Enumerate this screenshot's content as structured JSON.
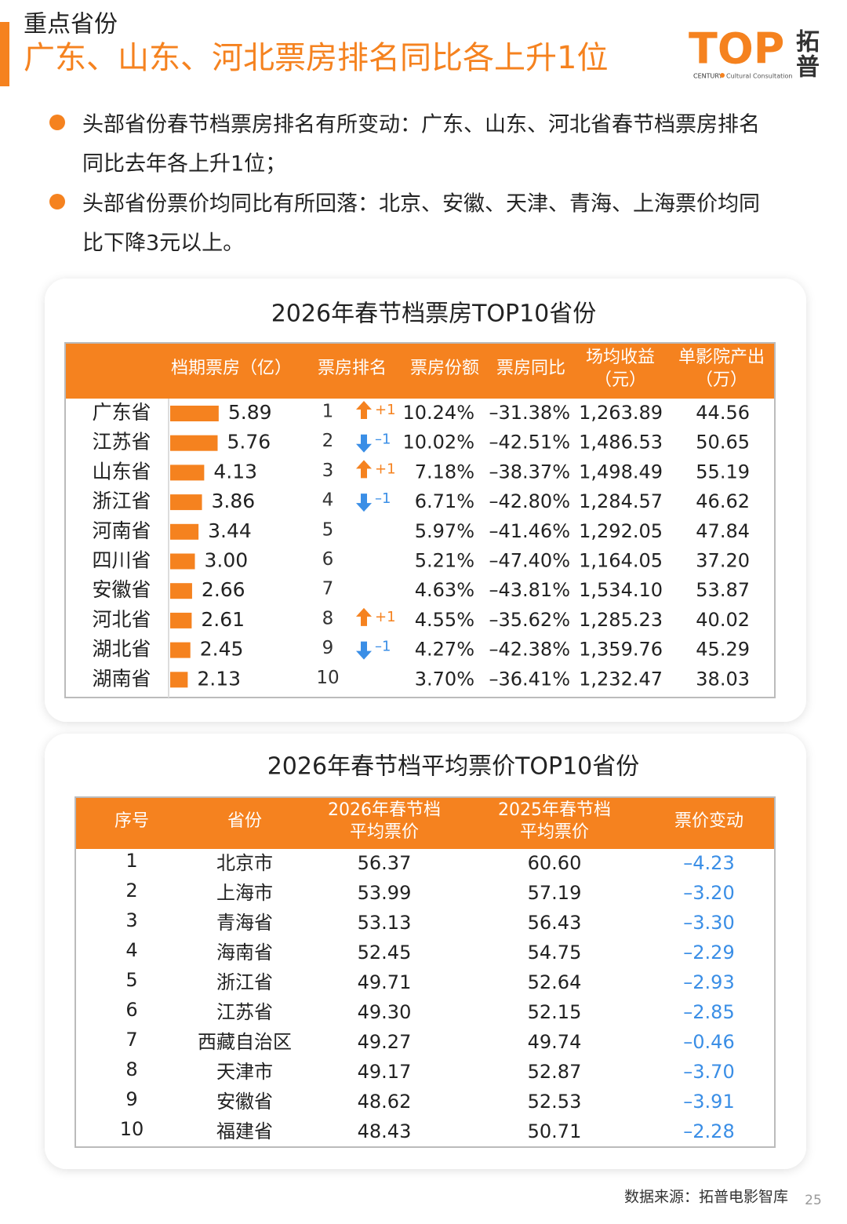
{
  "header": {
    "section": "重点省份",
    "title": "广东、山东、河北票房排名同比各上升1位"
  },
  "logo": {
    "mark": "TOP",
    "name": [
      "拓",
      "普"
    ],
    "tagline_left": "CENTURY",
    "tagline_right": "Cultural Consultation"
  },
  "bullets": [
    [
      "头部省份春节档票房排名有所变动：广东、山东、河北省春节档票房排名",
      "同比去年各上升1位；"
    ],
    [
      "头部省份票价均同比有所回落：北京、安徽、天津、青海、上海票价均同",
      "比下降3元以上。"
    ]
  ],
  "table1": {
    "title": "2026年春节档票房TOP10省份",
    "columns": [
      [
        "档期票房（亿）"
      ],
      [
        "票房排名"
      ],
      [
        "票房份额"
      ],
      [
        "票房同比"
      ],
      [
        "场均收益",
        "（元）"
      ],
      [
        "单影院产出",
        "（万）"
      ]
    ],
    "rows": [
      [
        "广东省",
        "5.89",
        "1",
        "+1",
        "10.24%",
        "–31.38%",
        "1,263.89",
        "44.56"
      ],
      [
        "江苏省",
        "5.76",
        "2",
        "–1",
        "10.02%",
        "–42.51%",
        "1,486.53",
        "50.65"
      ],
      [
        "山东省",
        "4.13",
        "3",
        "+1",
        "7.18%",
        "–38.37%",
        "1,498.49",
        "55.19"
      ],
      [
        "浙江省",
        "3.86",
        "4",
        "–1",
        "6.71%",
        "–42.80%",
        "1,284.57",
        "46.62"
      ],
      [
        "河南省",
        "3.44",
        "5",
        null,
        "5.97%",
        "–41.46%",
        "1,292.05",
        "47.84"
      ],
      [
        "四川省",
        "3.00",
        "6",
        null,
        "5.21%",
        "–47.40%",
        "1,164.05",
        "37.20"
      ],
      [
        "安徽省",
        "2.66",
        "7",
        null,
        "4.63%",
        "–43.81%",
        "1,534.10",
        "53.87"
      ],
      [
        "河北省",
        "2.61",
        "8",
        "+1",
        "4.55%",
        "–35.62%",
        "1,285.23",
        "40.02"
      ],
      [
        "湖北省",
        "2.45",
        "9",
        "–1",
        "4.27%",
        "–42.38%",
        "1,359.76",
        "45.29"
      ],
      [
        "湖南省",
        "2.13",
        "10",
        null,
        "3.70%",
        "–36.41%",
        "1,232.47",
        "38.03"
      ]
    ]
  },
  "table2": {
    "title": "2026年春节档平均票价TOP10省份",
    "columns": [
      [
        "序号"
      ],
      [
        "省份"
      ],
      [
        "2026年春节档",
        "平均票价"
      ],
      [
        "2025年春节档",
        "平均票价"
      ],
      [
        "票价变动"
      ]
    ],
    "rows": [
      [
        "1",
        "北京市",
        "56.37",
        "60.60",
        "–4.23"
      ],
      [
        "2",
        "上海市",
        "53.99",
        "57.19",
        "–3.20"
      ],
      [
        "3",
        "青海省",
        "53.13",
        "56.43",
        "–3.30"
      ],
      [
        "4",
        "海南省",
        "52.45",
        "54.75",
        "–2.29"
      ],
      [
        "5",
        "浙江省",
        "49.71",
        "52.64",
        "–2.93"
      ],
      [
        "6",
        "江苏省",
        "49.30",
        "52.15",
        "–2.85"
      ],
      [
        "7",
        "西藏自治区",
        "49.27",
        "49.74",
        "–0.46"
      ],
      [
        "8",
        "天津市",
        "49.17",
        "52.87",
        "–3.70"
      ],
      [
        "9",
        "安徽省",
        "48.62",
        "52.53",
        "–3.91"
      ],
      [
        "10",
        "福建省",
        "48.43",
        "50.71",
        "–2.28"
      ]
    ]
  },
  "footer": {
    "source": "数据来源：拓普电影智库",
    "page": "25"
  }
}
